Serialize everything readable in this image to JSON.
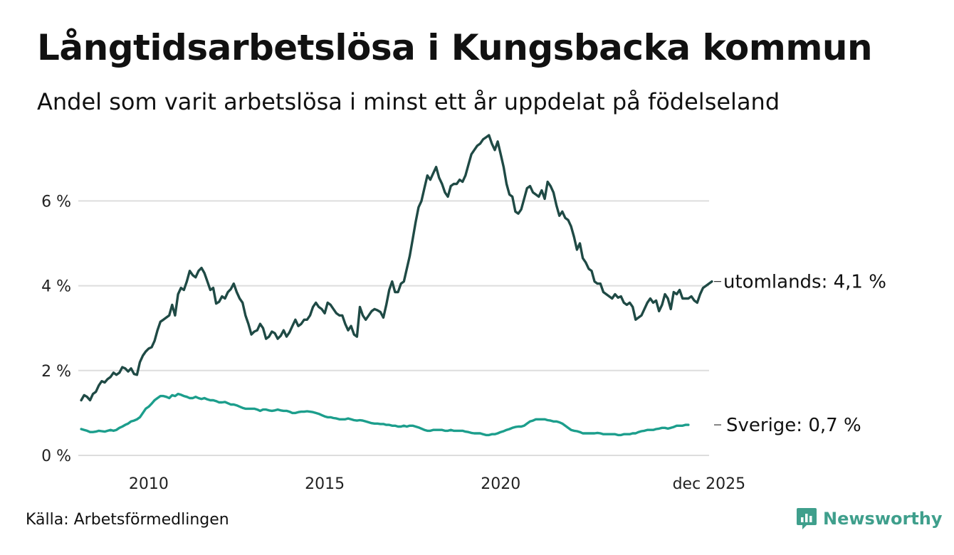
{
  "header": {
    "title": "Långtidsarbetslösa i Kungsbacka kommun",
    "subtitle": "Andel som varit arbetslösa i minst ett år uppdelat på födelseland"
  },
  "footer": {
    "source": "Källa: Arbetsförmedlingen",
    "brand": "Newsworthy",
    "brand_icon": "newsworthy-logo-icon"
  },
  "colors": {
    "utomlands": "#1f4a45",
    "sverige": "#1c9e8c",
    "grid": "#dddddd",
    "brand": "#3f9f8c"
  },
  "chart_data": {
    "type": "line",
    "title": "Långtidsarbetslösa i Kungsbacka kommun",
    "xlabel": "",
    "ylabel": "",
    "x_start": 2008.083,
    "x_step": 0.08333,
    "xlim": [
      2008.0,
      2025.92
    ],
    "ylim": [
      0,
      7.6
    ],
    "y_ticks": [
      0,
      2,
      4,
      6
    ],
    "y_tick_labels": [
      "0 %",
      "2 %",
      "4 %",
      "6 %"
    ],
    "x_ticks": [
      2010.0,
      2015.0,
      2020.0,
      2025.917
    ],
    "x_tick_labels": [
      "2010",
      "2015",
      "2020",
      "dec 2025"
    ],
    "grid": true,
    "series": [
      {
        "name": "utomlands",
        "end_label": "utomlands: 4,1 %",
        "values": [
          1.3,
          1.42,
          1.38,
          1.3,
          1.45,
          1.5,
          1.65,
          1.75,
          1.72,
          1.8,
          1.85,
          1.95,
          1.9,
          1.95,
          2.08,
          2.05,
          1.98,
          2.05,
          1.92,
          1.9,
          2.2,
          2.35,
          2.45,
          2.52,
          2.55,
          2.7,
          2.95,
          3.15,
          3.2,
          3.25,
          3.3,
          3.55,
          3.3,
          3.8,
          3.95,
          3.9,
          4.1,
          4.35,
          4.25,
          4.2,
          4.35,
          4.42,
          4.3,
          4.1,
          3.9,
          3.95,
          3.58,
          3.62,
          3.75,
          3.7,
          3.85,
          3.92,
          4.05,
          3.85,
          3.7,
          3.6,
          3.3,
          3.1,
          2.85,
          2.92,
          2.95,
          3.1,
          3.0,
          2.75,
          2.8,
          2.92,
          2.88,
          2.75,
          2.82,
          2.95,
          2.8,
          2.9,
          3.05,
          3.2,
          3.05,
          3.1,
          3.2,
          3.2,
          3.3,
          3.5,
          3.6,
          3.5,
          3.45,
          3.35,
          3.6,
          3.55,
          3.45,
          3.35,
          3.3,
          3.3,
          3.1,
          2.95,
          3.05,
          2.85,
          2.8,
          3.5,
          3.3,
          3.2,
          3.3,
          3.4,
          3.45,
          3.42,
          3.38,
          3.25,
          3.55,
          3.9,
          4.1,
          3.85,
          3.85,
          4.05,
          4.1,
          4.4,
          4.7,
          5.1,
          5.5,
          5.85,
          6.0,
          6.3,
          6.6,
          6.5,
          6.65,
          6.8,
          6.55,
          6.4,
          6.2,
          6.1,
          6.35,
          6.4,
          6.4,
          6.5,
          6.45,
          6.6,
          6.85,
          7.1,
          7.2,
          7.3,
          7.35,
          7.45,
          7.5,
          7.55,
          7.35,
          7.2,
          7.4,
          7.1,
          6.8,
          6.4,
          6.15,
          6.1,
          5.75,
          5.7,
          5.8,
          6.05,
          6.3,
          6.35,
          6.2,
          6.15,
          6.1,
          6.25,
          6.05,
          6.45,
          6.35,
          6.2,
          5.9,
          5.65,
          5.75,
          5.6,
          5.55,
          5.4,
          5.15,
          4.85,
          5.0,
          4.65,
          4.55,
          4.4,
          4.35,
          4.1,
          4.05,
          4.05,
          3.85,
          3.8,
          3.75,
          3.7,
          3.8,
          3.72,
          3.75,
          3.6,
          3.55,
          3.6,
          3.5,
          3.2,
          3.25,
          3.3,
          3.45,
          3.6,
          3.7,
          3.6,
          3.65,
          3.4,
          3.55,
          3.8,
          3.7,
          3.45,
          3.85,
          3.8,
          3.9,
          3.7,
          3.7,
          3.7,
          3.75,
          3.65,
          3.6,
          3.8,
          3.95,
          4.0,
          4.05,
          4.1
        ]
      },
      {
        "name": "Sverige",
        "end_label": "Sverige: 0,7 %",
        "values": [
          0.62,
          0.6,
          0.58,
          0.55,
          0.55,
          0.56,
          0.58,
          0.57,
          0.56,
          0.58,
          0.6,
          0.58,
          0.6,
          0.65,
          0.68,
          0.72,
          0.75,
          0.8,
          0.82,
          0.85,
          0.9,
          1.0,
          1.1,
          1.15,
          1.22,
          1.3,
          1.35,
          1.4,
          1.4,
          1.38,
          1.35,
          1.42,
          1.4,
          1.45,
          1.43,
          1.4,
          1.38,
          1.35,
          1.35,
          1.38,
          1.35,
          1.33,
          1.35,
          1.32,
          1.3,
          1.3,
          1.28,
          1.25,
          1.25,
          1.26,
          1.23,
          1.2,
          1.2,
          1.18,
          1.15,
          1.12,
          1.1,
          1.1,
          1.1,
          1.1,
          1.08,
          1.05,
          1.08,
          1.08,
          1.06,
          1.05,
          1.06,
          1.08,
          1.06,
          1.05,
          1.05,
          1.03,
          1.0,
          1.0,
          1.02,
          1.03,
          1.03,
          1.04,
          1.03,
          1.02,
          1.0,
          0.98,
          0.95,
          0.92,
          0.9,
          0.9,
          0.88,
          0.87,
          0.85,
          0.85,
          0.85,
          0.87,
          0.85,
          0.83,
          0.82,
          0.83,
          0.82,
          0.8,
          0.78,
          0.76,
          0.75,
          0.75,
          0.74,
          0.74,
          0.72,
          0.72,
          0.7,
          0.7,
          0.68,
          0.68,
          0.7,
          0.68,
          0.7,
          0.7,
          0.68,
          0.66,
          0.63,
          0.6,
          0.58,
          0.58,
          0.6,
          0.6,
          0.6,
          0.6,
          0.58,
          0.58,
          0.6,
          0.58,
          0.58,
          0.58,
          0.58,
          0.56,
          0.55,
          0.53,
          0.52,
          0.52,
          0.52,
          0.5,
          0.48,
          0.48,
          0.5,
          0.5,
          0.52,
          0.55,
          0.57,
          0.6,
          0.62,
          0.65,
          0.67,
          0.68,
          0.68,
          0.7,
          0.75,
          0.8,
          0.82,
          0.85,
          0.85,
          0.85,
          0.85,
          0.83,
          0.82,
          0.8,
          0.8,
          0.78,
          0.75,
          0.7,
          0.65,
          0.6,
          0.58,
          0.57,
          0.55,
          0.52,
          0.52,
          0.52,
          0.52,
          0.52,
          0.53,
          0.52,
          0.5,
          0.5,
          0.5,
          0.5,
          0.5,
          0.48,
          0.48,
          0.5,
          0.5,
          0.5,
          0.52,
          0.52,
          0.55,
          0.57,
          0.58,
          0.6,
          0.6,
          0.6,
          0.62,
          0.63,
          0.65,
          0.65,
          0.63,
          0.65,
          0.67,
          0.7,
          0.7,
          0.7,
          0.72,
          0.72
        ]
      }
    ]
  }
}
